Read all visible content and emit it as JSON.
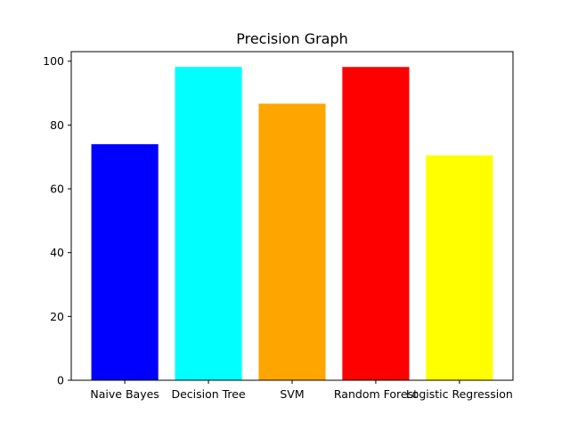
{
  "chart_data": {
    "type": "bar",
    "title": "Precision Graph",
    "xlabel": "",
    "ylabel": "",
    "categories": [
      "Naive Bayes",
      "Decision Tree",
      "SVM",
      "Random Forest",
      "Logistic Regression"
    ],
    "values": [
      74,
      98.2,
      86.7,
      98.2,
      70.5
    ],
    "colors": [
      "#0000ff",
      "#00ffff",
      "#ffa500",
      "#ff0000",
      "#ffff00"
    ],
    "ylim": [
      0,
      103
    ],
    "yticks": [
      0,
      20,
      40,
      60,
      80,
      100
    ],
    "grid": false,
    "legend": "none"
  }
}
